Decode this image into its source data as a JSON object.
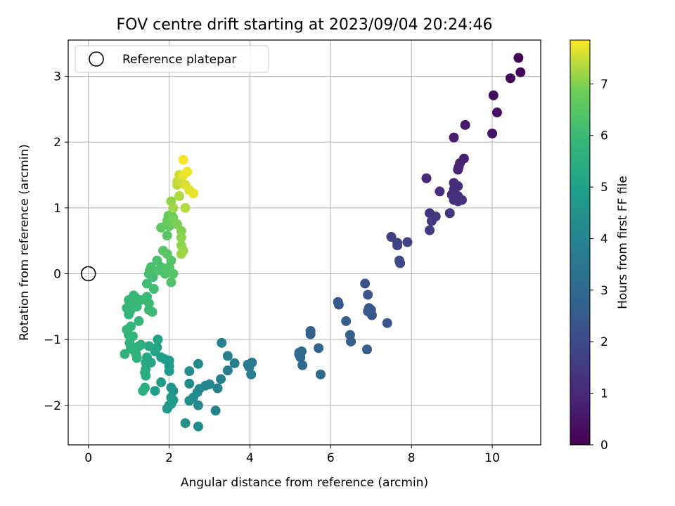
{
  "chart_data": {
    "type": "scatter",
    "title": "FOV centre drift starting at 2023/09/04 20:24:46",
    "xlabel": "Angular distance from reference (arcmin)",
    "ylabel": "Rotation from reference (arcmin)",
    "xlim": [
      -0.5,
      11.2
    ],
    "ylim": [
      -2.6,
      3.55
    ],
    "xticks": [
      "0",
      "2",
      "4",
      "6",
      "8",
      "10"
    ],
    "yticks": [
      "−2",
      "−1",
      "0",
      "1",
      "2",
      "3"
    ],
    "grid": true,
    "legend": {
      "placement": "top-left",
      "entries": [
        "Reference platepar"
      ]
    },
    "reference_point": {
      "x": 0,
      "y": 0
    },
    "colorbar": {
      "label": "Hours from first FF file",
      "colormap": "viridis",
      "range": [
        0,
        7.85
      ],
      "ticks": [
        "0",
        "1",
        "2",
        "3",
        "4",
        "5",
        "6",
        "7"
      ]
    },
    "series": [
      {
        "color_by": "hours_from_first_ff",
        "points": [
          [
            10.65,
            3.28,
            0.05
          ],
          [
            10.7,
            3.06,
            0.1
          ],
          [
            10.45,
            2.97,
            0.15
          ],
          [
            10.03,
            2.71,
            0.3
          ],
          [
            10.12,
            2.45,
            0.4
          ],
          [
            9.33,
            2.26,
            0.6
          ],
          [
            10.0,
            2.13,
            0.45
          ],
          [
            9.05,
            2.07,
            0.7
          ],
          [
            9.3,
            1.75,
            0.8
          ],
          [
            9.2,
            1.68,
            0.85
          ],
          [
            9.17,
            1.62,
            0.9
          ],
          [
            9.15,
            1.58,
            0.9
          ],
          [
            8.37,
            1.45,
            1.0
          ],
          [
            9.05,
            1.38,
            1.05
          ],
          [
            9.15,
            1.33,
            1.1
          ],
          [
            9.05,
            1.28,
            1.1
          ],
          [
            9.0,
            1.2,
            1.15
          ],
          [
            8.7,
            1.25,
            1.2
          ],
          [
            9.15,
            1.18,
            1.2
          ],
          [
            9.25,
            1.12,
            1.25
          ],
          [
            9.05,
            1.12,
            1.25
          ],
          [
            9.15,
            1.1,
            1.3
          ],
          [
            8.45,
            0.92,
            1.35
          ],
          [
            8.95,
            0.92,
            1.4
          ],
          [
            8.6,
            0.87,
            1.45
          ],
          [
            8.5,
            0.8,
            1.5
          ],
          [
            8.45,
            0.66,
            1.55
          ],
          [
            7.5,
            0.56,
            1.7
          ],
          [
            7.9,
            0.48,
            1.75
          ],
          [
            7.65,
            0.47,
            1.8
          ],
          [
            7.65,
            0.43,
            1.8
          ],
          [
            7.7,
            0.2,
            1.9
          ],
          [
            7.72,
            0.16,
            1.95
          ],
          [
            6.85,
            -0.15,
            2.3
          ],
          [
            6.92,
            -0.32,
            2.35
          ],
          [
            6.18,
            -0.43,
            2.5
          ],
          [
            6.2,
            -0.47,
            2.5
          ],
          [
            6.95,
            -0.52,
            2.35
          ],
          [
            7.0,
            -0.55,
            2.4
          ],
          [
            6.92,
            -0.57,
            2.4
          ],
          [
            7.02,
            -0.63,
            2.45
          ],
          [
            6.38,
            -0.72,
            2.6
          ],
          [
            7.4,
            -0.75,
            2.35
          ],
          [
            5.5,
            -0.87,
            2.8
          ],
          [
            5.5,
            -0.92,
            2.8
          ],
          [
            6.48,
            -0.93,
            2.65
          ],
          [
            6.5,
            -1.03,
            2.65
          ],
          [
            5.7,
            -1.13,
            2.85
          ],
          [
            6.9,
            -1.15,
            2.6
          ],
          [
            5.22,
            -1.2,
            3.0
          ],
          [
            5.28,
            -1.18,
            3.0
          ],
          [
            5.22,
            -1.23,
            3.0
          ],
          [
            5.25,
            -1.27,
            3.05
          ],
          [
            5.3,
            -1.39,
            3.05
          ],
          [
            5.75,
            -1.53,
            2.95
          ],
          [
            4.05,
            -1.35,
            3.6
          ],
          [
            3.95,
            -1.38,
            3.6
          ],
          [
            3.98,
            -1.42,
            3.6
          ],
          [
            3.62,
            -1.36,
            3.7
          ],
          [
            3.45,
            -1.25,
            3.8
          ],
          [
            3.3,
            -1.05,
            3.85
          ],
          [
            3.45,
            -1.47,
            3.75
          ],
          [
            4.03,
            -1.53,
            3.65
          ],
          [
            3.28,
            -1.6,
            3.9
          ],
          [
            3.2,
            -1.74,
            3.95
          ],
          [
            3.0,
            -1.68,
            4.05
          ],
          [
            2.9,
            -1.7,
            4.1
          ],
          [
            2.75,
            -1.75,
            4.15
          ],
          [
            2.7,
            -1.8,
            4.2
          ],
          [
            2.6,
            -1.88,
            4.25
          ],
          [
            2.5,
            -1.93,
            4.3
          ],
          [
            2.72,
            -2.0,
            4.2
          ],
          [
            2.5,
            -1.67,
            4.3
          ],
          [
            2.5,
            -1.48,
            4.35
          ],
          [
            2.72,
            -1.37,
            4.25
          ],
          [
            3.15,
            -2.08,
            3.95
          ],
          [
            2.4,
            -2.27,
            4.4
          ],
          [
            2.72,
            -2.32,
            4.3
          ],
          [
            2.05,
            -1.73,
            4.6
          ],
          [
            2.1,
            -1.78,
            4.6
          ],
          [
            2.05,
            -1.88,
            4.65
          ],
          [
            2.1,
            -1.92,
            4.65
          ],
          [
            2.05,
            -1.98,
            4.7
          ],
          [
            1.95,
            -2.05,
            4.75
          ],
          [
            2.0,
            -2.0,
            4.7
          ],
          [
            1.65,
            -1.78,
            4.9
          ],
          [
            1.8,
            -1.65,
            4.9
          ],
          [
            2.0,
            -1.32,
            4.85
          ],
          [
            1.9,
            -1.3,
            4.9
          ],
          [
            1.8,
            -1.27,
            4.95
          ],
          [
            2.0,
            -1.4,
            4.85
          ],
          [
            2.0,
            -1.48,
            4.85
          ],
          [
            1.72,
            -1.0,
            5.1
          ],
          [
            1.65,
            -1.15,
            5.1
          ],
          [
            1.7,
            -1.12,
            5.15
          ],
          [
            1.65,
            -1.18,
            5.15
          ],
          [
            1.5,
            -1.1,
            5.3
          ],
          [
            1.45,
            -1.27,
            5.3
          ],
          [
            1.42,
            -1.35,
            5.35
          ],
          [
            1.42,
            -1.45,
            5.35
          ],
          [
            1.55,
            -1.35,
            5.25
          ],
          [
            1.4,
            -1.5,
            5.4
          ],
          [
            1.42,
            -1.55,
            5.4
          ],
          [
            1.4,
            -1.73,
            5.5
          ],
          [
            1.35,
            -1.78,
            5.55
          ],
          [
            1.3,
            -1.08,
            5.5
          ],
          [
            1.25,
            -1.1,
            5.55
          ],
          [
            1.2,
            -1.12,
            5.6
          ],
          [
            1.1,
            -1.15,
            5.65
          ],
          [
            1.05,
            -1.12,
            5.7
          ],
          [
            1.2,
            -1.28,
            5.6
          ],
          [
            1.18,
            -1.22,
            5.65
          ],
          [
            0.9,
            -1.22,
            5.75
          ],
          [
            1.02,
            -1.05,
            5.75
          ],
          [
            1.1,
            -0.95,
            5.75
          ],
          [
            1.0,
            -0.93,
            5.8
          ],
          [
            0.95,
            -0.85,
            5.8
          ],
          [
            1.05,
            -0.8,
            5.8
          ],
          [
            1.25,
            -0.72,
            5.85
          ],
          [
            1.0,
            -0.62,
            5.85
          ],
          [
            1.05,
            -0.55,
            5.85
          ],
          [
            0.95,
            -0.52,
            5.9
          ],
          [
            1.05,
            -0.45,
            5.9
          ],
          [
            1.15,
            -0.45,
            5.9
          ],
          [
            1.2,
            -0.5,
            5.9
          ],
          [
            1.0,
            -0.4,
            5.9
          ],
          [
            1.12,
            -0.33,
            5.95
          ],
          [
            1.15,
            -0.35,
            5.95
          ],
          [
            1.3,
            -0.4,
            5.95
          ],
          [
            1.45,
            -0.35,
            5.95
          ],
          [
            1.5,
            -0.45,
            6.0
          ],
          [
            1.58,
            -0.58,
            6.0
          ],
          [
            1.5,
            -0.55,
            6.0
          ],
          [
            1.6,
            -0.05,
            6.1
          ],
          [
            1.45,
            -0.15,
            6.1
          ],
          [
            1.5,
            0.0,
            6.15
          ],
          [
            1.52,
            0.05,
            6.2
          ],
          [
            1.55,
            0.1,
            6.25
          ],
          [
            1.62,
            -0.23,
            6.1
          ],
          [
            1.7,
            0.2,
            6.25
          ],
          [
            1.75,
            0.05,
            6.3
          ],
          [
            1.8,
            0.1,
            6.3
          ],
          [
            1.9,
            0.0,
            6.35
          ],
          [
            1.95,
            0.08,
            6.35
          ],
          [
            2.0,
            0.1,
            6.4
          ],
          [
            2.05,
            0.2,
            6.4
          ],
          [
            2.05,
            -0.13,
            6.35
          ],
          [
            2.1,
            0.0,
            6.45
          ],
          [
            1.85,
            0.35,
            6.45
          ],
          [
            1.95,
            0.3,
            6.5
          ],
          [
            1.95,
            0.58,
            6.5
          ],
          [
            1.8,
            0.7,
            6.6
          ],
          [
            2.0,
            0.72,
            6.65
          ],
          [
            1.95,
            0.8,
            6.7
          ],
          [
            1.98,
            0.88,
            6.75
          ],
          [
            2.05,
            0.9,
            6.8
          ],
          [
            2.1,
            0.85,
            6.85
          ],
          [
            2.1,
            0.8,
            6.9
          ],
          [
            2.2,
            0.75,
            6.95
          ],
          [
            2.3,
            0.65,
            7.0
          ],
          [
            2.3,
            0.55,
            7.05
          ],
          [
            2.3,
            0.43,
            7.1
          ],
          [
            2.35,
            0.35,
            7.15
          ],
          [
            2.3,
            0.3,
            7.2
          ],
          [
            2.05,
            1.1,
            7.1
          ],
          [
            2.1,
            1.0,
            7.2
          ],
          [
            2.25,
            1.18,
            7.3
          ],
          [
            2.4,
            1.0,
            7.35
          ],
          [
            2.2,
            1.35,
            7.4
          ],
          [
            2.2,
            1.4,
            7.45
          ],
          [
            2.3,
            1.4,
            7.5
          ],
          [
            2.25,
            1.5,
            7.55
          ],
          [
            2.4,
            1.35,
            7.6
          ],
          [
            2.5,
            1.27,
            7.65
          ],
          [
            2.6,
            1.22,
            7.7
          ],
          [
            2.35,
            1.5,
            7.7
          ],
          [
            2.45,
            1.55,
            7.75
          ],
          [
            2.35,
            1.73,
            7.8
          ]
        ]
      }
    ]
  }
}
